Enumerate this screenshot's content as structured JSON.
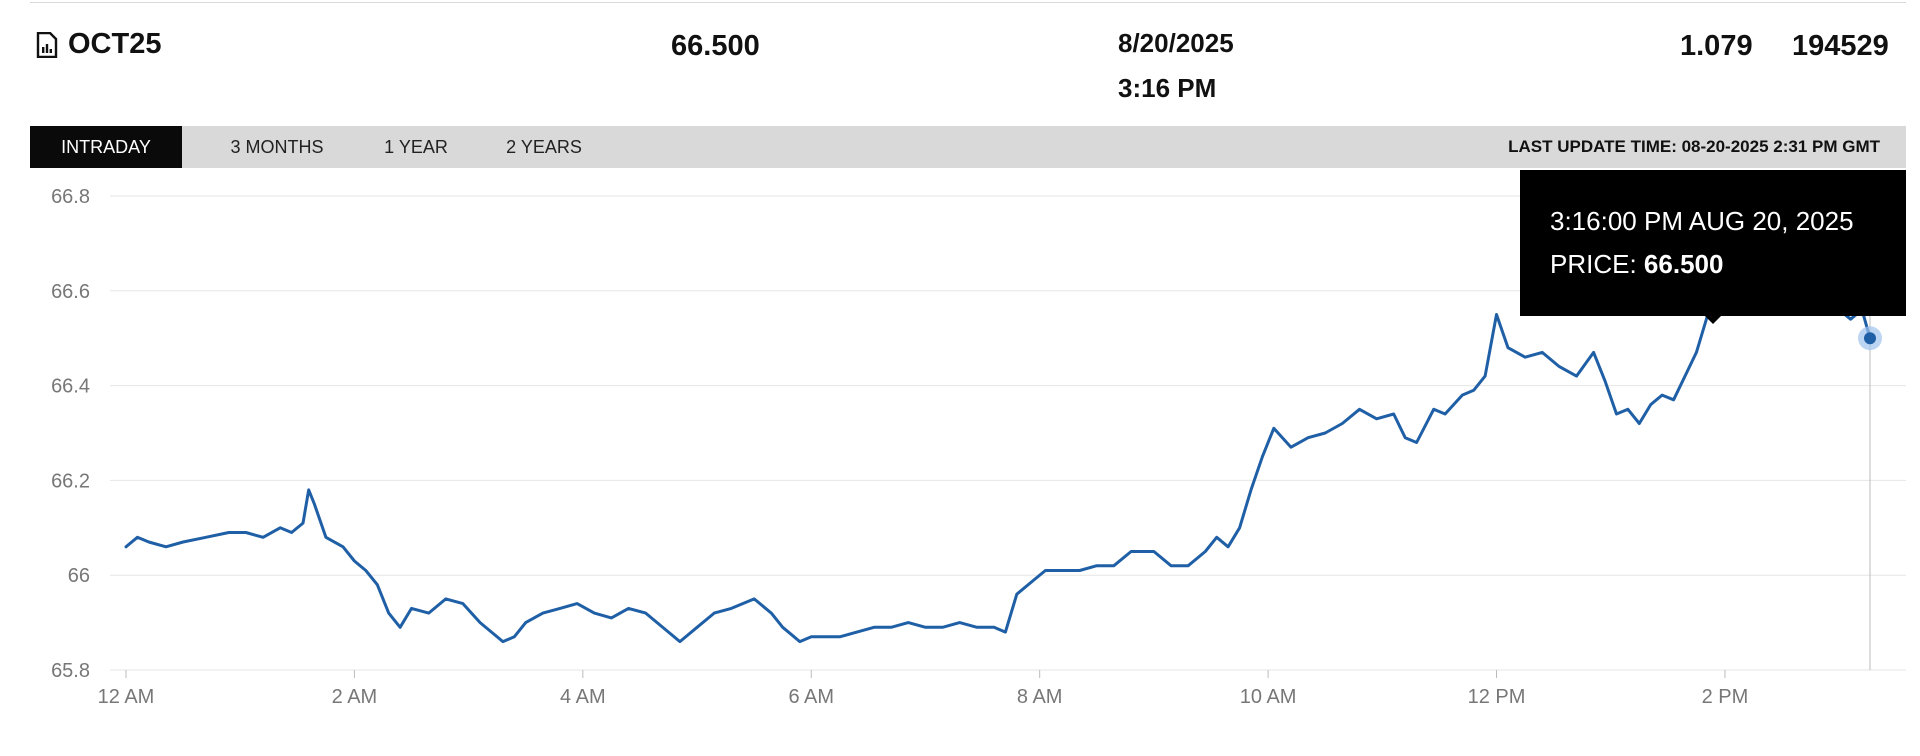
{
  "header": {
    "symbol": "OCT25",
    "symbol_icon": "chart-document-icon",
    "last_price": "66.500",
    "date": "8/20/2025",
    "time": "3:16 PM",
    "change": "1.079",
    "volume": "194529"
  },
  "tabs": [
    {
      "label": "INTRADAY",
      "active": true
    },
    {
      "label": "3 MONTHS",
      "active": false
    },
    {
      "label": "1 YEAR",
      "active": false
    },
    {
      "label": "2 YEARS",
      "active": false
    }
  ],
  "last_update": "LAST UPDATE TIME: 08-20-2025 2:31 PM GMT",
  "tooltip": {
    "time": "3:16:00 PM AUG 20, 2025",
    "price_label": "PRICE:",
    "price_value": "66.500"
  },
  "colors": {
    "line": "#1f5fa6",
    "tab_active_bg": "#0a0a0a",
    "tabbar_bg": "#d9d9d9",
    "grid": "#e6e6e6",
    "tooltip_bg": "#000000"
  },
  "chart_data": {
    "type": "line",
    "title": "",
    "xlabel": "",
    "ylabel": "",
    "x_unit": "hours after 12 AM",
    "x_ticks": [
      {
        "x": 0,
        "label": "12 AM"
      },
      {
        "x": 2,
        "label": "2 AM"
      },
      {
        "x": 4,
        "label": "4 AM"
      },
      {
        "x": 6,
        "label": "6 AM"
      },
      {
        "x": 8,
        "label": "8 AM"
      },
      {
        "x": 10,
        "label": "10 AM"
      },
      {
        "x": 12,
        "label": "12 PM"
      },
      {
        "x": 14,
        "label": "2 PM"
      }
    ],
    "y_ticks": [
      {
        "y": 65.8,
        "label": "65.8"
      },
      {
        "y": 66.0,
        "label": "66"
      },
      {
        "y": 66.2,
        "label": "66.2"
      },
      {
        "y": 66.4,
        "label": "66.4"
      },
      {
        "y": 66.6,
        "label": "66.6"
      },
      {
        "y": 66.8,
        "label": "66.8"
      }
    ],
    "xlim": [
      0,
      15.27
    ],
    "ylim": [
      65.8,
      66.8
    ],
    "grid": true,
    "hover_x": 15.27,
    "series": [
      {
        "values": [
          [
            0.0,
            66.06
          ],
          [
            0.1,
            66.08
          ],
          [
            0.2,
            66.07
          ],
          [
            0.35,
            66.06
          ],
          [
            0.5,
            66.07
          ],
          [
            0.7,
            66.08
          ],
          [
            0.9,
            66.09
          ],
          [
            1.05,
            66.09
          ],
          [
            1.2,
            66.08
          ],
          [
            1.35,
            66.1
          ],
          [
            1.45,
            66.09
          ],
          [
            1.55,
            66.11
          ],
          [
            1.6,
            66.18
          ],
          [
            1.65,
            66.15
          ],
          [
            1.75,
            66.08
          ],
          [
            1.9,
            66.06
          ],
          [
            2.0,
            66.03
          ],
          [
            2.1,
            66.01
          ],
          [
            2.2,
            65.98
          ],
          [
            2.3,
            65.92
          ],
          [
            2.4,
            65.89
          ],
          [
            2.5,
            65.93
          ],
          [
            2.65,
            65.92
          ],
          [
            2.8,
            65.95
          ],
          [
            2.95,
            65.94
          ],
          [
            3.1,
            65.9
          ],
          [
            3.2,
            65.88
          ],
          [
            3.3,
            65.86
          ],
          [
            3.4,
            65.87
          ],
          [
            3.5,
            65.9
          ],
          [
            3.65,
            65.92
          ],
          [
            3.8,
            65.93
          ],
          [
            3.95,
            65.94
          ],
          [
            4.1,
            65.92
          ],
          [
            4.25,
            65.91
          ],
          [
            4.4,
            65.93
          ],
          [
            4.55,
            65.92
          ],
          [
            4.65,
            65.9
          ],
          [
            4.75,
            65.88
          ],
          [
            4.85,
            65.86
          ],
          [
            5.0,
            65.89
          ],
          [
            5.15,
            65.92
          ],
          [
            5.3,
            65.93
          ],
          [
            5.5,
            65.95
          ],
          [
            5.65,
            65.92
          ],
          [
            5.75,
            65.89
          ],
          [
            5.85,
            65.87
          ],
          [
            5.9,
            65.86
          ],
          [
            6.0,
            65.87
          ],
          [
            6.1,
            65.87
          ],
          [
            6.25,
            65.87
          ],
          [
            6.4,
            65.88
          ],
          [
            6.55,
            65.89
          ],
          [
            6.7,
            65.89
          ],
          [
            6.85,
            65.9
          ],
          [
            7.0,
            65.89
          ],
          [
            7.15,
            65.89
          ],
          [
            7.3,
            65.9
          ],
          [
            7.45,
            65.89
          ],
          [
            7.6,
            65.89
          ],
          [
            7.7,
            65.88
          ],
          [
            7.8,
            65.96
          ],
          [
            7.95,
            65.99
          ],
          [
            8.05,
            66.01
          ],
          [
            8.2,
            66.01
          ],
          [
            8.35,
            66.01
          ],
          [
            8.5,
            66.02
          ],
          [
            8.65,
            66.02
          ],
          [
            8.8,
            66.05
          ],
          [
            9.0,
            66.05
          ],
          [
            9.15,
            66.02
          ],
          [
            9.3,
            66.02
          ],
          [
            9.45,
            66.05
          ],
          [
            9.55,
            66.08
          ],
          [
            9.65,
            66.06
          ],
          [
            9.75,
            66.1
          ],
          [
            9.85,
            66.18
          ],
          [
            9.95,
            66.25
          ],
          [
            10.05,
            66.31
          ],
          [
            10.2,
            66.27
          ],
          [
            10.35,
            66.29
          ],
          [
            10.5,
            66.3
          ],
          [
            10.65,
            66.32
          ],
          [
            10.8,
            66.35
          ],
          [
            10.95,
            66.33
          ],
          [
            11.1,
            66.34
          ],
          [
            11.2,
            66.29
          ],
          [
            11.3,
            66.28
          ],
          [
            11.45,
            66.35
          ],
          [
            11.55,
            66.34
          ],
          [
            11.7,
            66.38
          ],
          [
            11.8,
            66.39
          ],
          [
            11.9,
            66.42
          ],
          [
            12.0,
            66.55
          ],
          [
            12.1,
            66.48
          ],
          [
            12.25,
            66.46
          ],
          [
            12.4,
            66.47
          ],
          [
            12.55,
            66.44
          ],
          [
            12.7,
            66.42
          ],
          [
            12.85,
            66.47
          ],
          [
            12.95,
            66.41
          ],
          [
            13.05,
            66.34
          ],
          [
            13.15,
            66.35
          ],
          [
            13.25,
            66.32
          ],
          [
            13.35,
            66.36
          ],
          [
            13.45,
            66.38
          ],
          [
            13.55,
            66.37
          ],
          [
            13.65,
            66.42
          ],
          [
            13.75,
            66.47
          ],
          [
            13.85,
            66.55
          ],
          [
            13.95,
            66.68
          ],
          [
            14.0,
            66.7
          ],
          [
            14.1,
            66.66
          ],
          [
            14.2,
            66.64
          ],
          [
            14.3,
            66.62
          ],
          [
            14.4,
            66.58
          ],
          [
            14.5,
            66.59
          ],
          [
            14.6,
            66.6
          ],
          [
            14.7,
            66.57
          ],
          [
            14.75,
            66.55
          ],
          [
            14.85,
            66.58
          ],
          [
            15.0,
            66.56
          ],
          [
            15.1,
            66.54
          ],
          [
            15.2,
            66.56
          ],
          [
            15.27,
            66.5
          ]
        ]
      }
    ]
  }
}
